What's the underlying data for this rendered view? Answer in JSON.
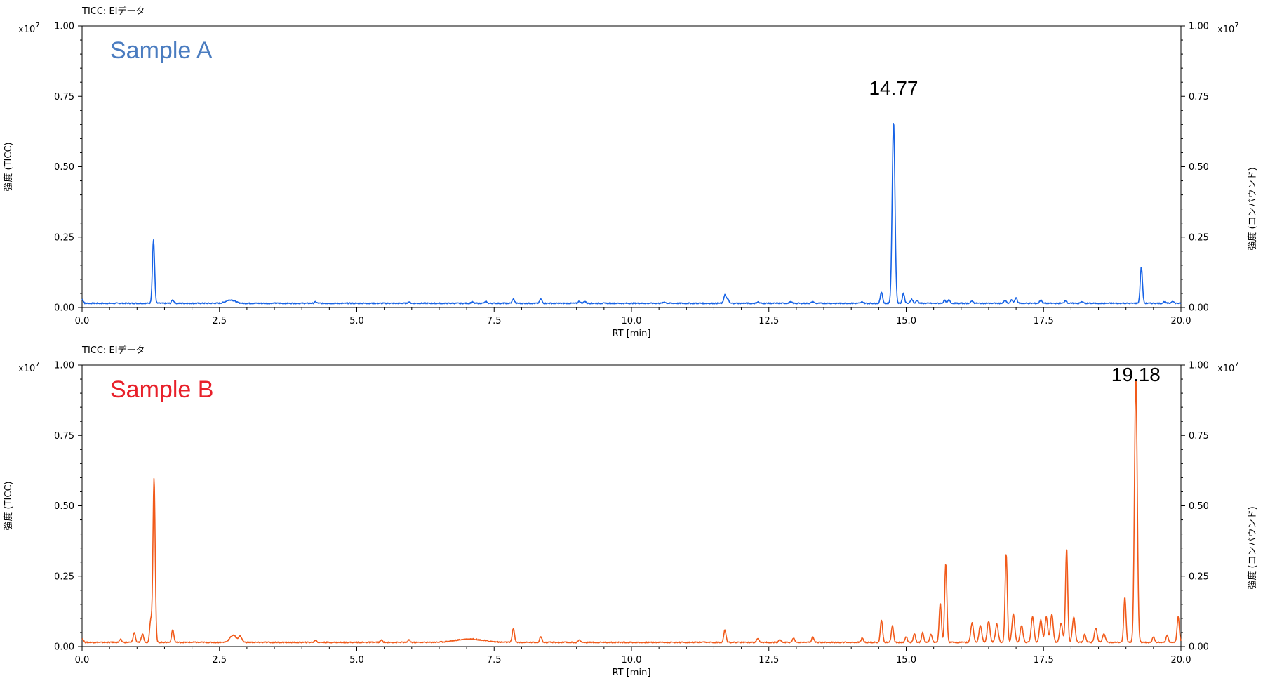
{
  "chart_data": [
    {
      "type": "line",
      "header": "TICC: EIデータ",
      "title": "Sample A",
      "title_color": "#4a7cc0",
      "line_color": "#1763e6",
      "xlabel": "RT [min]",
      "ylabel_left": "強度 (TICC)",
      "ylabel_right": "強度 (コンパウンド)",
      "y_multiplier": "x10",
      "y_multiplier_exp": "7",
      "xlim": [
        0,
        20
      ],
      "ylim": [
        0,
        1.0
      ],
      "x_ticks": [
        "0.0",
        "2.5",
        "5.0",
        "7.5",
        "10.0",
        "12.5",
        "15.0",
        "17.5",
        "20.0"
      ],
      "y_ticks": [
        "0.00",
        "0.25",
        "0.50",
        "0.75",
        "1.00"
      ],
      "peak_label": "14.77",
      "peak_label_rt": 14.77,
      "baseline": 0.015,
      "peaks": [
        [
          1.3,
          0.225,
          0.02
        ],
        [
          1.65,
          0.012,
          0.02
        ],
        [
          2.7,
          0.012,
          0.08
        ],
        [
          4.25,
          0.005,
          0.02
        ],
        [
          5.95,
          0.005,
          0.02
        ],
        [
          7.1,
          0.005,
          0.02
        ],
        [
          7.35,
          0.006,
          0.02
        ],
        [
          7.85,
          0.015,
          0.02
        ],
        [
          8.35,
          0.015,
          0.02
        ],
        [
          9.05,
          0.007,
          0.02
        ],
        [
          9.15,
          0.007,
          0.02
        ],
        [
          10.6,
          0.005,
          0.02
        ],
        [
          11.7,
          0.03,
          0.02
        ],
        [
          11.75,
          0.015,
          0.02
        ],
        [
          12.3,
          0.005,
          0.02
        ],
        [
          12.9,
          0.005,
          0.02
        ],
        [
          13.3,
          0.006,
          0.02
        ],
        [
          14.2,
          0.005,
          0.02
        ],
        [
          14.55,
          0.04,
          0.02
        ],
        [
          14.77,
          0.645,
          0.025
        ],
        [
          14.95,
          0.035,
          0.02
        ],
        [
          15.1,
          0.015,
          0.02
        ],
        [
          15.2,
          0.01,
          0.02
        ],
        [
          15.7,
          0.01,
          0.02
        ],
        [
          15.78,
          0.012,
          0.02
        ],
        [
          16.2,
          0.008,
          0.02
        ],
        [
          16.8,
          0.01,
          0.02
        ],
        [
          16.92,
          0.012,
          0.02
        ],
        [
          17.0,
          0.02,
          0.02
        ],
        [
          17.45,
          0.012,
          0.02
        ],
        [
          17.9,
          0.01,
          0.02
        ],
        [
          18.2,
          0.006,
          0.02
        ],
        [
          19.28,
          0.13,
          0.02
        ],
        [
          19.7,
          0.006,
          0.02
        ],
        [
          19.85,
          0.008,
          0.02
        ]
      ]
    },
    {
      "type": "line",
      "header": "TICC: EIデータ",
      "title": "Sample B",
      "title_color": "#e8202a",
      "line_color": "#f15a1a",
      "xlabel": "RT [min]",
      "ylabel_left": "強度 (TICC)",
      "ylabel_right": "強度 (コンパウンド)",
      "y_multiplier": "x10",
      "y_multiplier_exp": "7",
      "xlim": [
        0,
        20
      ],
      "ylim": [
        0,
        1.0
      ],
      "x_ticks": [
        "0.0",
        "2.5",
        "5.0",
        "7.5",
        "10.0",
        "12.5",
        "15.0",
        "17.5",
        "20.0"
      ],
      "y_ticks": [
        "0.00",
        "0.25",
        "0.50",
        "0.75",
        "1.00"
      ],
      "peak_label": "19.18",
      "peak_label_rt": 19.18,
      "baseline": 0.015,
      "peaks": [
        [
          0.7,
          0.01,
          0.02
        ],
        [
          0.95,
          0.035,
          0.02
        ],
        [
          1.1,
          0.03,
          0.02
        ],
        [
          1.25,
          0.08,
          0.02
        ],
        [
          1.31,
          0.585,
          0.02
        ],
        [
          1.65,
          0.045,
          0.02
        ],
        [
          2.75,
          0.025,
          0.06
        ],
        [
          2.88,
          0.02,
          0.03
        ],
        [
          4.25,
          0.008,
          0.02
        ],
        [
          5.45,
          0.008,
          0.02
        ],
        [
          5.95,
          0.008,
          0.02
        ],
        [
          7.05,
          0.012,
          0.25
        ],
        [
          7.85,
          0.05,
          0.02
        ],
        [
          8.35,
          0.02,
          0.02
        ],
        [
          9.05,
          0.008,
          0.02
        ],
        [
          11.7,
          0.045,
          0.02
        ],
        [
          12.3,
          0.015,
          0.02
        ],
        [
          12.7,
          0.01,
          0.02
        ],
        [
          12.95,
          0.015,
          0.02
        ],
        [
          13.3,
          0.02,
          0.02
        ],
        [
          14.2,
          0.015,
          0.02
        ],
        [
          14.55,
          0.08,
          0.02
        ],
        [
          14.75,
          0.06,
          0.02
        ],
        [
          15.0,
          0.02,
          0.02
        ],
        [
          15.15,
          0.03,
          0.02
        ],
        [
          15.3,
          0.035,
          0.02
        ],
        [
          15.45,
          0.03,
          0.02
        ],
        [
          15.62,
          0.14,
          0.02
        ],
        [
          15.72,
          0.28,
          0.02
        ],
        [
          16.2,
          0.07,
          0.025
        ],
        [
          16.35,
          0.06,
          0.025
        ],
        [
          16.5,
          0.075,
          0.025
        ],
        [
          16.65,
          0.065,
          0.025
        ],
        [
          16.82,
          0.315,
          0.02
        ],
        [
          16.95,
          0.1,
          0.025
        ],
        [
          17.1,
          0.06,
          0.025
        ],
        [
          17.3,
          0.09,
          0.025
        ],
        [
          17.45,
          0.08,
          0.025
        ],
        [
          17.55,
          0.09,
          0.025
        ],
        [
          17.65,
          0.1,
          0.025
        ],
        [
          17.82,
          0.07,
          0.025
        ],
        [
          17.92,
          0.335,
          0.02
        ],
        [
          18.05,
          0.09,
          0.025
        ],
        [
          18.25,
          0.03,
          0.02
        ],
        [
          18.45,
          0.05,
          0.025
        ],
        [
          18.6,
          0.03,
          0.025
        ],
        [
          18.98,
          0.16,
          0.02
        ],
        [
          19.18,
          0.94,
          0.025
        ],
        [
          19.5,
          0.02,
          0.02
        ],
        [
          19.75,
          0.025,
          0.02
        ],
        [
          19.95,
          0.09,
          0.02
        ]
      ]
    }
  ]
}
